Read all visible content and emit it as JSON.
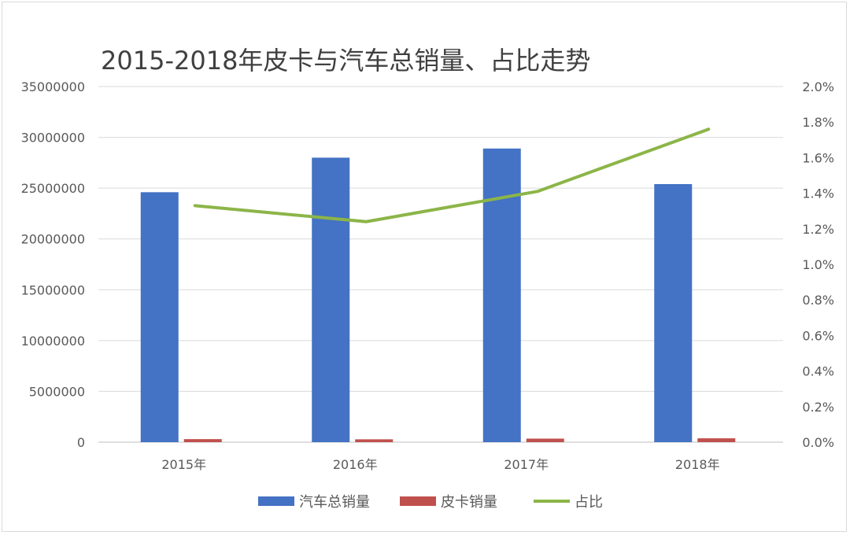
{
  "chart_data": {
    "type": "bar",
    "title": "2015-2018年皮卡与汽车总销量、占比走势",
    "categories": [
      "2015年",
      "2016年",
      "2017年",
      "2018年"
    ],
    "series": [
      {
        "name": "汽车总销量",
        "type": "bar",
        "axis": "left",
        "color": "#4472c4",
        "values": [
          24600000,
          28000000,
          28900000,
          25400000
        ]
      },
      {
        "name": "皮卡销量",
        "type": "bar",
        "axis": "left",
        "color": "#c0504d",
        "values": [
          300000,
          280000,
          350000,
          380000
        ]
      },
      {
        "name": "占比",
        "type": "line",
        "axis": "right",
        "color": "#8cb548",
        "values": [
          0.0133,
          0.0124,
          0.0141,
          0.0176
        ]
      }
    ],
    "y_left": {
      "min": 0,
      "max": 35000000,
      "ticks": [
        "0",
        "5000000",
        "10000000",
        "15000000",
        "20000000",
        "25000000",
        "30000000",
        "35000000"
      ]
    },
    "y_right": {
      "min": 0,
      "max": 0.02,
      "ticks": [
        "0.0%",
        "0.2%",
        "0.4%",
        "0.6%",
        "0.8%",
        "1.0%",
        "1.2%",
        "1.4%",
        "1.6%",
        "1.8%",
        "2.0%"
      ]
    },
    "grid": true,
    "legend_position": "bottom"
  }
}
